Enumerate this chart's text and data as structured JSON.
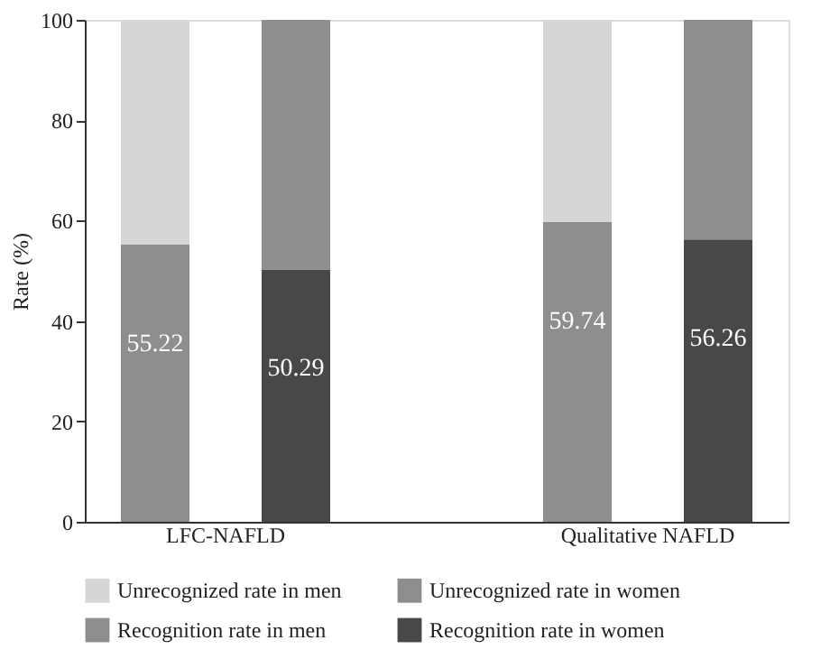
{
  "chart_data": {
    "type": "bar",
    "stacked": true,
    "ylabel": "Rate (%)",
    "categories": [
      "LFC-NAFLD",
      null,
      null,
      "Qualitative NAFLD",
      null
    ],
    "series": [
      {
        "name": "Recognition rate in men",
        "color": "#8e8e8e",
        "values": [
          55.22,
          null,
          null,
          59.74,
          null
        ],
        "value_labels": [
          "55.22",
          null,
          null,
          "59.74",
          null
        ]
      },
      {
        "name": "Recognition rate in women",
        "color": "#484848",
        "values": [
          null,
          50.29,
          null,
          null,
          56.26
        ],
        "value_labels": [
          null,
          "50.29",
          null,
          null,
          "56.26"
        ]
      },
      {
        "name": "Unrecognized rate in men",
        "color": "#d6d6d6",
        "values": [
          44.78,
          null,
          null,
          40.26,
          null
        ]
      },
      {
        "name": "Unrecognized rate in women",
        "color": "#8e8e8e",
        "values": [
          null,
          49.71,
          null,
          null,
          43.74
        ]
      }
    ],
    "ylim": [
      0,
      100
    ],
    "yticks": [
      0,
      20,
      40,
      60,
      80,
      100
    ],
    "grid": false,
    "legend": "bottom"
  }
}
